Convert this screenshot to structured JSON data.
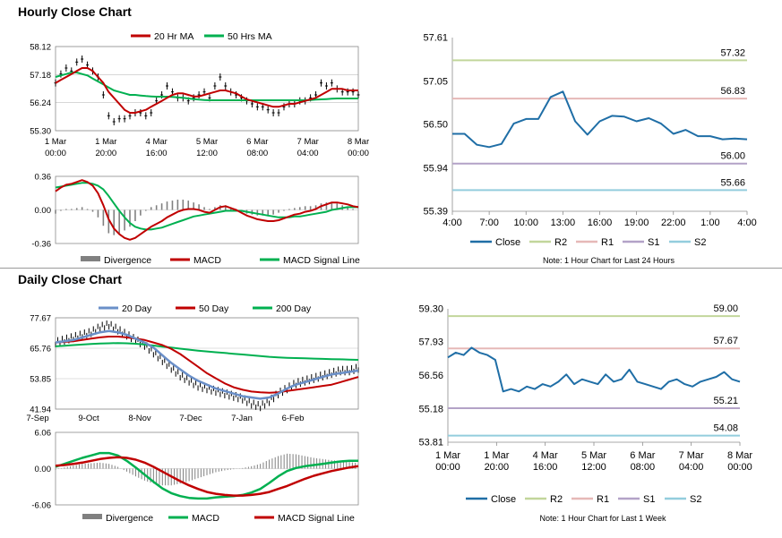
{
  "sections": {
    "hourly_title": "Hourly Close Chart",
    "daily_title": "Daily Close Chart"
  },
  "colors": {
    "ma_short": "#c00000",
    "ma_long": "#00b050",
    "price": "#000000",
    "divergence": "#808080",
    "close": "#1f6ea6",
    "r2": "#c2d69b",
    "r1": "#e6b8b7",
    "s1": "#b3a2c7",
    "s2": "#93cddd",
    "ma_20day": "#6a8fc8"
  },
  "chart_data": [
    {
      "id": "hourly-price",
      "type": "line",
      "legend": [
        "20 Hr MA",
        "50 Hrs MA"
      ],
      "y_ticks": [
        "58.12",
        "57.18",
        "56.24",
        "55.30"
      ],
      "ylim": [
        55.3,
        58.12
      ],
      "x_ticks": [
        [
          "1 Mar",
          "00:00"
        ],
        [
          "1 Mar",
          "20:00"
        ],
        [
          "4 Mar",
          "16:00"
        ],
        [
          "5 Mar",
          "12:00"
        ],
        [
          "6 Mar",
          "08:00"
        ],
        [
          "7 Mar",
          "04:00"
        ],
        [
          "8 Mar",
          "00:00"
        ]
      ],
      "series": [
        {
          "name": "Close",
          "values": [
            56.9,
            57.2,
            57.4,
            57.3,
            57.6,
            57.7,
            57.5,
            57.3,
            57.1,
            56.5,
            55.8,
            55.6,
            55.7,
            55.7,
            55.8,
            55.9,
            55.9,
            55.8,
            55.9,
            56.3,
            56.5,
            56.8,
            56.6,
            56.4,
            56.4,
            56.3,
            56.4,
            56.5,
            56.6,
            56.4,
            56.8,
            57.1,
            56.8,
            56.6,
            56.5,
            56.4,
            56.3,
            56.2,
            56.1,
            56.1,
            56.0,
            55.9,
            55.9,
            56.1,
            56.2,
            56.2,
            56.3,
            56.3,
            56.4,
            56.5,
            56.9,
            56.8,
            56.9,
            56.7,
            56.6,
            56.6,
            56.6,
            56.5
          ]
        },
        {
          "name": "20 Hr MA",
          "values": [
            56.9,
            57.0,
            57.1,
            57.2,
            57.3,
            57.4,
            57.4,
            57.3,
            57.1,
            56.9,
            56.6,
            56.4,
            56.2,
            56.0,
            55.9,
            55.9,
            55.95,
            56.0,
            56.1,
            56.2,
            56.3,
            56.4,
            56.5,
            56.55,
            56.55,
            56.5,
            56.45,
            56.45,
            56.5,
            56.55,
            56.6,
            56.65,
            56.65,
            56.6,
            56.55,
            56.45,
            56.35,
            56.3,
            56.25,
            56.2,
            56.15,
            56.1,
            56.1,
            56.15,
            56.2,
            56.2,
            56.25,
            56.3,
            56.35,
            56.4,
            56.5,
            56.6,
            56.7,
            56.7,
            56.7,
            56.65,
            56.65,
            56.65
          ]
        },
        {
          "name": "50 Hrs MA",
          "values": [
            57.1,
            57.15,
            57.2,
            57.25,
            57.25,
            57.2,
            57.15,
            57.05,
            56.95,
            56.85,
            56.75,
            56.65,
            56.6,
            56.55,
            56.5,
            56.5,
            56.48,
            56.46,
            56.45,
            56.44,
            56.44,
            56.44,
            56.43,
            56.42,
            56.4,
            56.38,
            56.36,
            56.34,
            56.33,
            56.32,
            56.32,
            56.32,
            56.32,
            56.32,
            56.32,
            56.32,
            56.32,
            56.32,
            56.32,
            56.32,
            56.32,
            56.32,
            56.32,
            56.32,
            56.32,
            56.32,
            56.32,
            56.32,
            56.33,
            56.34,
            56.35,
            56.36,
            56.37,
            56.38,
            56.38,
            56.38,
            56.38,
            56.38
          ]
        }
      ]
    },
    {
      "id": "hourly-macd",
      "type": "line",
      "legend": [
        "Divergence",
        "MACD",
        "MACD Signal Line"
      ],
      "y_ticks": [
        "0.36",
        "0.00",
        "-0.36"
      ],
      "ylim": [
        -0.36,
        0.36
      ],
      "series": [
        {
          "name": "MACD",
          "values": [
            0.2,
            0.24,
            0.27,
            0.28,
            0.3,
            0.32,
            0.3,
            0.26,
            0.18,
            0.05,
            -0.1,
            -0.2,
            -0.26,
            -0.3,
            -0.32,
            -0.3,
            -0.26,
            -0.22,
            -0.18,
            -0.15,
            -0.12,
            -0.08,
            -0.05,
            -0.02,
            0.0,
            0.01,
            0.01,
            0.0,
            -0.02,
            -0.03,
            0.0,
            0.03,
            0.04,
            0.02,
            0.0,
            -0.03,
            -0.06,
            -0.08,
            -0.1,
            -0.11,
            -0.12,
            -0.12,
            -0.11,
            -0.09,
            -0.07,
            -0.05,
            -0.04,
            -0.02,
            -0.01,
            0.01,
            0.04,
            0.06,
            0.08,
            0.08,
            0.07,
            0.06,
            0.04,
            0.03
          ]
        },
        {
          "name": "MACD Signal Line",
          "values": [
            0.24,
            0.25,
            0.26,
            0.27,
            0.28,
            0.29,
            0.29,
            0.28,
            0.26,
            0.22,
            0.15,
            0.07,
            -0.01,
            -0.08,
            -0.14,
            -0.18,
            -0.2,
            -0.21,
            -0.21,
            -0.2,
            -0.19,
            -0.17,
            -0.15,
            -0.13,
            -0.11,
            -0.09,
            -0.07,
            -0.06,
            -0.05,
            -0.04,
            -0.03,
            -0.02,
            -0.01,
            -0.01,
            -0.01,
            -0.01,
            -0.02,
            -0.03,
            -0.04,
            -0.05,
            -0.06,
            -0.07,
            -0.08,
            -0.08,
            -0.08,
            -0.07,
            -0.07,
            -0.06,
            -0.05,
            -0.04,
            -0.03,
            -0.02,
            0.0,
            0.01,
            0.02,
            0.03,
            0.03,
            0.03
          ]
        }
      ]
    },
    {
      "id": "hourly-levels",
      "type": "line",
      "legend": [
        "Close",
        "R2",
        "R1",
        "S1",
        "S2"
      ],
      "note": "Note: 1 Hour Chart for Last 24 Hours",
      "y_ticks": [
        "57.61",
        "57.05",
        "56.50",
        "55.94",
        "55.39"
      ],
      "ylim": [
        55.39,
        57.61
      ],
      "x_ticks": [
        "4:00",
        "7:00",
        "10:00",
        "13:00",
        "16:00",
        "19:00",
        "22:00",
        "1:00",
        "4:00"
      ],
      "levels": [
        {
          "name": "R2",
          "value": 57.32,
          "label": "57.32"
        },
        {
          "name": "R1",
          "value": 56.83,
          "label": "56.83"
        },
        {
          "name": "S1",
          "value": 56.0,
          "label": "56.00"
        },
        {
          "name": "S2",
          "value": 55.66,
          "label": "55.66"
        }
      ],
      "series": [
        {
          "name": "Close",
          "values": [
            56.38,
            56.38,
            56.24,
            56.21,
            56.25,
            56.51,
            56.57,
            56.57,
            56.85,
            56.92,
            56.54,
            56.37,
            56.54,
            56.61,
            56.6,
            56.54,
            56.58,
            56.51,
            56.38,
            56.43,
            56.35,
            56.35,
            56.31,
            56.32,
            56.31
          ]
        }
      ]
    },
    {
      "id": "daily-price",
      "type": "line",
      "legend": [
        "20 Day",
        "50 Day",
        "200 Day"
      ],
      "y_ticks": [
        "77.67",
        "65.76",
        "53.85",
        "41.94"
      ],
      "ylim": [
        41.94,
        77.67
      ],
      "x_ticks": [
        "7-Sep",
        "9-Oct",
        "8-Nov",
        "7-Dec",
        "7-Jan",
        "6-Feb"
      ],
      "series": [
        {
          "name": "Close",
          "values": [
            68,
            69,
            70,
            71,
            72,
            74,
            75,
            73,
            71,
            69,
            67,
            64,
            61,
            58,
            55,
            53,
            51,
            50,
            49,
            48,
            47,
            46,
            44,
            43,
            45,
            48,
            50,
            52,
            53,
            54,
            55,
            56,
            57,
            57,
            58
          ]
        },
        {
          "name": "20 Day",
          "values": [
            68,
            68.5,
            69,
            70,
            71,
            72,
            72.5,
            72,
            71,
            69.5,
            68,
            66,
            63,
            60,
            57.5,
            55,
            53,
            51.5,
            50,
            49,
            48,
            47,
            46.5,
            46,
            46.5,
            48,
            50,
            51.5,
            52.5,
            53.5,
            54.5,
            55.5,
            56,
            56.5,
            57
          ]
        },
        {
          "name": "50 Day",
          "values": [
            68,
            68.2,
            68.5,
            69,
            69.5,
            70,
            70.3,
            70.3,
            70,
            69.5,
            69,
            68,
            67,
            65.5,
            63.5,
            61,
            58.5,
            56,
            54,
            52,
            50.5,
            49.5,
            48.8,
            48.5,
            48.3,
            48.5,
            49,
            49.5,
            50,
            50.5,
            51,
            51.5,
            52.5,
            53.5,
            54.5
          ]
        },
        {
          "name": "200 Day",
          "values": [
            66.5,
            66.7,
            67,
            67.2,
            67.4,
            67.6,
            67.7,
            67.8,
            67.7,
            67.5,
            67.2,
            66.8,
            66.4,
            66,
            65.6,
            65.2,
            64.8,
            64.5,
            64.2,
            63.9,
            63.6,
            63.3,
            63,
            62.7,
            62.4,
            62.2,
            62,
            61.9,
            61.8,
            61.7,
            61.6,
            61.5,
            61.4,
            61.3,
            61.2
          ]
        }
      ]
    },
    {
      "id": "daily-macd",
      "type": "line",
      "legend": [
        "Divergence",
        "MACD",
        "MACD Signal Line"
      ],
      "y_ticks": [
        "6.06",
        "0.00",
        "-6.06"
      ],
      "ylim": [
        -6.06,
        6.06
      ],
      "series": [
        {
          "name": "MACD",
          "values": [
            0.3,
            0.8,
            1.3,
            1.8,
            2.2,
            2.6,
            2.6,
            2.2,
            1.3,
            0.2,
            -1.0,
            -2.2,
            -3.3,
            -4.1,
            -4.6,
            -4.9,
            -5.0,
            -5.0,
            -4.8,
            -4.7,
            -4.6,
            -4.4,
            -4.0,
            -3.4,
            -2.4,
            -1.3,
            -0.4,
            0.1,
            0.4,
            0.6,
            0.8,
            1.0,
            1.2,
            1.3,
            1.3
          ]
        },
        {
          "name": "MACD Signal Line",
          "values": [
            0.5,
            0.6,
            0.8,
            1.0,
            1.3,
            1.6,
            1.8,
            1.9,
            1.8,
            1.5,
            1.0,
            0.3,
            -0.5,
            -1.3,
            -2.1,
            -2.8,
            -3.4,
            -3.9,
            -4.2,
            -4.4,
            -4.5,
            -4.5,
            -4.4,
            -4.2,
            -3.9,
            -3.4,
            -2.9,
            -2.3,
            -1.7,
            -1.2,
            -0.8,
            -0.4,
            -0.1,
            0.2,
            0.4
          ]
        }
      ]
    },
    {
      "id": "daily-levels",
      "type": "line",
      "legend": [
        "Close",
        "R2",
        "R1",
        "S1",
        "S2"
      ],
      "note": "Note: 1 Hour Chart for Last 1 Week",
      "y_ticks": [
        "59.30",
        "57.93",
        "56.56",
        "55.18",
        "53.81"
      ],
      "ylim": [
        53.81,
        59.3
      ],
      "x_ticks": [
        [
          "1 Mar",
          "00:00"
        ],
        [
          "1 Mar",
          "20:00"
        ],
        [
          "4 Mar",
          "16:00"
        ],
        [
          "5 Mar",
          "12:00"
        ],
        [
          "6 Mar",
          "08:00"
        ],
        [
          "7 Mar",
          "04:00"
        ],
        [
          "8 Mar",
          "00:00"
        ]
      ],
      "levels": [
        {
          "name": "R2",
          "value": 59.0,
          "label": "59.00"
        },
        {
          "name": "R1",
          "value": 57.67,
          "label": "57.67"
        },
        {
          "name": "S1",
          "value": 55.21,
          "label": "55.21"
        },
        {
          "name": "S2",
          "value": 54.08,
          "label": "54.08"
        }
      ],
      "series": [
        {
          "name": "Close",
          "values": [
            57.3,
            57.5,
            57.4,
            57.7,
            57.5,
            57.4,
            57.2,
            55.9,
            56.0,
            55.9,
            56.1,
            56.0,
            56.2,
            56.1,
            56.3,
            56.6,
            56.2,
            56.4,
            56.3,
            56.2,
            56.6,
            56.3,
            56.4,
            56.8,
            56.3,
            56.2,
            56.1,
            56.0,
            56.3,
            56.4,
            56.2,
            56.1,
            56.3,
            56.4,
            56.5,
            56.7,
            56.4,
            56.3
          ]
        }
      ]
    }
  ]
}
